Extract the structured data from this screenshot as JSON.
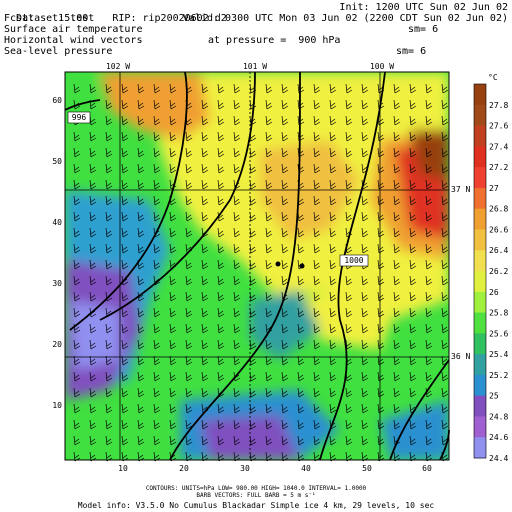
{
  "header": {
    "dataset": "Dataset: test",
    "rip": "RIP: rip20020602 d2",
    "init": "Init: 1200 UTC Sun 02 Jun 02",
    "fcst": "Fcst:    15.00",
    "valid": "Valid: 0300 UTC Mon 03 Jun 02 (2200 CDT Sun 02 Jun 02)",
    "field1": "Surface air temperature",
    "field2": "Horizontal wind vectors",
    "field2_pressure": "at pressure =  900 hPa",
    "field3": "Sea-level pressure",
    "sm1": "sm= 6",
    "sm2": "sm= 6"
  },
  "map": {
    "lon_labels": [
      "102 W",
      "101 W",
      "100 W"
    ],
    "lat_labels": [
      "37 N",
      "36 N"
    ],
    "x_ticks": [
      "10",
      "20",
      "30",
      "40",
      "50",
      "60"
    ],
    "y_ticks": [
      "10",
      "20",
      "30",
      "40",
      "50",
      "60"
    ],
    "contour_labels": [
      "996",
      "1000"
    ],
    "colors": {
      "low": "#9090f0",
      "mid_low": "#2ea0d0",
      "green": "#40e040",
      "yellow": "#f0f040",
      "orange": "#f0a030",
      "red": "#e03020",
      "brown": "#903010"
    }
  },
  "colorbar": {
    "unit": "°C",
    "labels": [
      "27.8",
      "27.6",
      "27.4",
      "27.2",
      "27",
      "26.8",
      "26.6",
      "26.4",
      "26.2",
      "26",
      "25.8",
      "25.6",
      "25.4",
      "25.2",
      "25",
      "24.8",
      "24.6",
      "24.4"
    ],
    "colors": [
      "#984010",
      "#a04a18",
      "#c04020",
      "#e03020",
      "#f04030",
      "#f07030",
      "#f0a030",
      "#f0c040",
      "#f0e050",
      "#e0f040",
      "#a0f040",
      "#50e040",
      "#30c060",
      "#30a0a0",
      "#2a90d0",
      "#8050c0",
      "#a060d0",
      "#9090f0"
    ]
  },
  "footer": {
    "line1": "CONTOURS:  UNITS=hPa  LOW=  980.00     HIGH=  1040.0     INTERVAL=   1.0000",
    "line2": "BARB VECTORS:  FULL BARB = 5 m s⁻¹",
    "line3": "Model info: V3.5.0 No Cumulus Blackadar  Simple ice    4 km,  29 levels,   10 sec"
  }
}
